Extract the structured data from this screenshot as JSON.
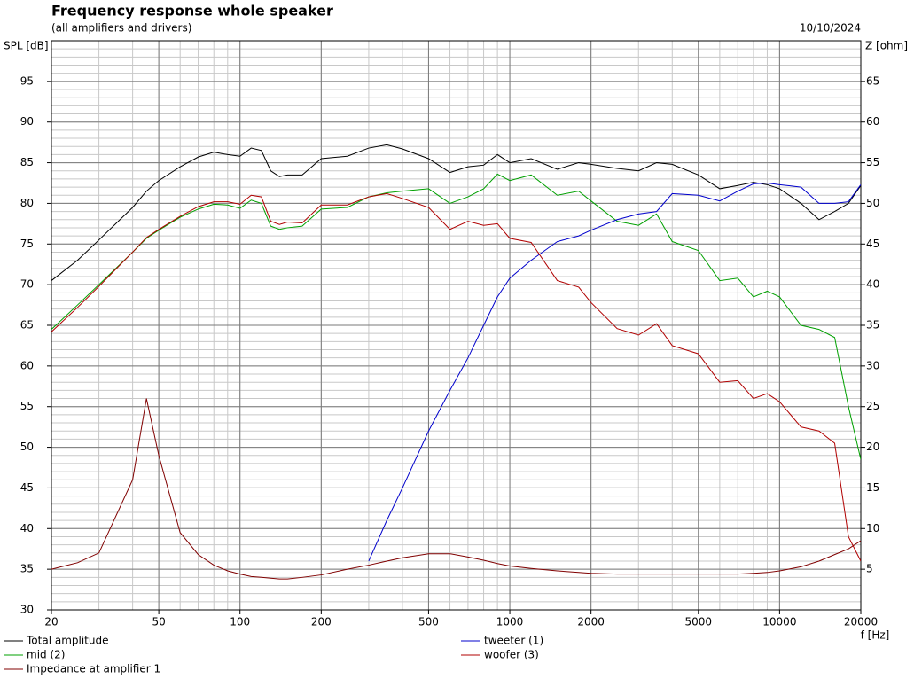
{
  "chart_data": {
    "type": "line",
    "title": "Frequency response whole speaker",
    "subtitle": "(all amplifiers and drivers)",
    "date": "10/10/2024",
    "y_label": "SPL [dB]",
    "y2_label": "Z [ohm]",
    "x_label": "f [Hz]",
    "log_x": true,
    "grid": true,
    "minor_grid": true,
    "xlim": [
      20,
      20000
    ],
    "xticks": [
      20,
      50,
      100,
      200,
      500,
      1000,
      2000,
      5000,
      10000,
      20000
    ],
    "ylim": [
      30,
      100
    ],
    "yticks": [
      30,
      35,
      40,
      45,
      50,
      55,
      60,
      65,
      70,
      75,
      80,
      85,
      90,
      95
    ],
    "y2lim": [
      0,
      70
    ],
    "y2ticks": [
      5,
      10,
      15,
      20,
      25,
      30,
      35,
      40,
      45,
      50,
      55,
      60,
      65
    ],
    "x": [
      20,
      25,
      30,
      40,
      45,
      50,
      60,
      70,
      80,
      90,
      100,
      110,
      120,
      130,
      140,
      150,
      170,
      200,
      250,
      300,
      350,
      400,
      500,
      600,
      700,
      800,
      900,
      1000,
      1200,
      1500,
      1800,
      2000,
      2500,
      3000,
      3500,
      4000,
      5000,
      6000,
      7000,
      8000,
      9000,
      10000,
      12000,
      14000,
      16000,
      18000,
      20000
    ],
    "series": [
      {
        "name": "Total amplitude",
        "color": "#000000",
        "values": [
          70.5,
          73,
          75.5,
          79.5,
          81.5,
          82.8,
          84.5,
          85.7,
          86.3,
          86,
          85.8,
          86.8,
          86.5,
          84,
          83.3,
          83.5,
          83.5,
          85.5,
          85.8,
          86.8,
          87.2,
          86.7,
          85.5,
          83.8,
          84.5,
          84.7,
          86,
          85,
          85.5,
          84.2,
          85,
          84.8,
          84.3,
          84,
          85,
          84.8,
          83.5,
          81.8,
          82.2,
          82.6,
          82.3,
          81.8,
          80,
          78,
          79,
          80,
          82.2
        ]
      },
      {
        "name": "mid (2)",
        "color": "#00a000",
        "values": [
          64.5,
          67.5,
          70,
          74,
          75.7,
          76.7,
          78.3,
          79.3,
          79.9,
          79.8,
          79.4,
          80.4,
          80,
          77.2,
          76.8,
          77,
          77.2,
          79.3,
          79.5,
          80.8,
          81.3,
          81.5,
          81.8,
          80,
          80.8,
          81.8,
          83.6,
          82.8,
          83.5,
          81,
          81.5,
          80.3,
          77.8,
          77.3,
          78.7,
          75.3,
          74.2,
          70.5,
          70.8,
          68.5,
          69.2,
          68.5,
          65,
          64.5,
          63.5,
          55,
          48.5
        ]
      },
      {
        "name": "Impedance at amplifier 1",
        "color": "#800000",
        "axis": "y2",
        "values": [
          5,
          5.8,
          7,
          16,
          26,
          19,
          9.5,
          6.8,
          5.5,
          4.8,
          4.4,
          4.1,
          4,
          3.9,
          3.8,
          3.8,
          4,
          4.3,
          5,
          5.5,
          6,
          6.4,
          6.9,
          6.9,
          6.5,
          6.1,
          5.7,
          5.4,
          5.1,
          4.8,
          4.6,
          4.5,
          4.4,
          4.4,
          4.4,
          4.4,
          4.4,
          4.4,
          4.4,
          4.5,
          4.6,
          4.8,
          5.3,
          6,
          6.8,
          7.5,
          8.5
        ]
      },
      {
        "name": "tweeter (1)",
        "color": "#0000cc",
        "values": [
          null,
          null,
          null,
          null,
          null,
          null,
          null,
          null,
          null,
          null,
          null,
          null,
          null,
          null,
          null,
          null,
          null,
          null,
          null,
          36,
          41,
          45,
          52,
          57,
          61,
          65,
          68.5,
          70.8,
          73,
          75.3,
          76,
          76.7,
          78,
          78.7,
          79,
          81.2,
          81,
          80.3,
          81.5,
          82.4,
          82.5,
          82.3,
          82,
          80,
          80,
          80.2,
          82.3
        ]
      },
      {
        "name": "woofer (3)",
        "color": "#b00000",
        "values": [
          64.2,
          67.2,
          69.8,
          74,
          75.8,
          76.8,
          78.4,
          79.6,
          80.2,
          80.2,
          79.9,
          81,
          80.8,
          77.8,
          77.4,
          77.7,
          77.6,
          79.8,
          79.8,
          80.8,
          81.2,
          80.6,
          79.5,
          76.8,
          77.8,
          77.3,
          77.5,
          75.7,
          75.2,
          70.5,
          69.7,
          67.8,
          64.6,
          63.8,
          65.2,
          62.5,
          61.5,
          58,
          58.2,
          56,
          56.6,
          55.6,
          52.5,
          52,
          50.5,
          39,
          36
        ]
      }
    ]
  }
}
